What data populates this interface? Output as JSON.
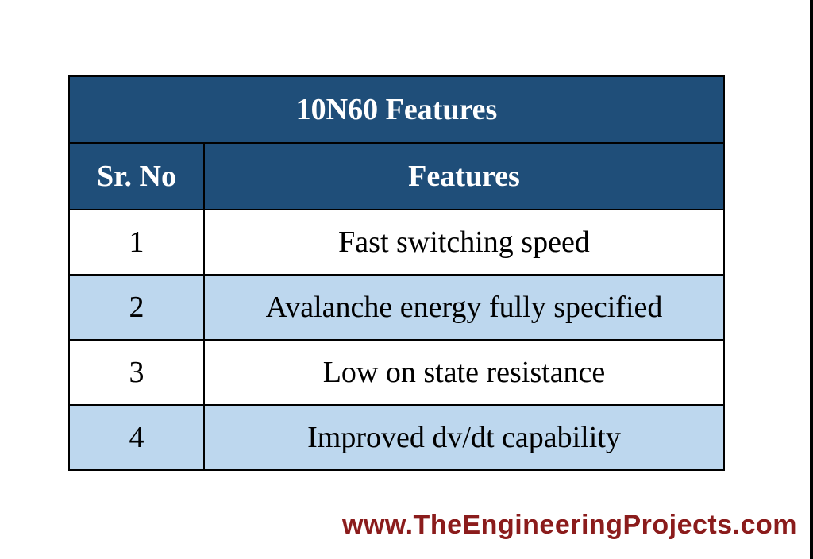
{
  "table": {
    "title": "10N60 Features",
    "headers": [
      "Sr. No",
      "Features"
    ],
    "rows": [
      [
        "1",
        "Fast switching speed"
      ],
      [
        "2",
        "Avalanche energy fully specified"
      ],
      [
        "3",
        "Low on state resistance"
      ],
      [
        "4",
        "Improved dv/dt capability"
      ]
    ]
  },
  "footer": {
    "website": "www.TheEngineeringProjects.com"
  },
  "colors": {
    "header_bg": "#1f4e79",
    "stripe_bg": "#bdd7ee",
    "footer_text": "#8b1c1c"
  }
}
